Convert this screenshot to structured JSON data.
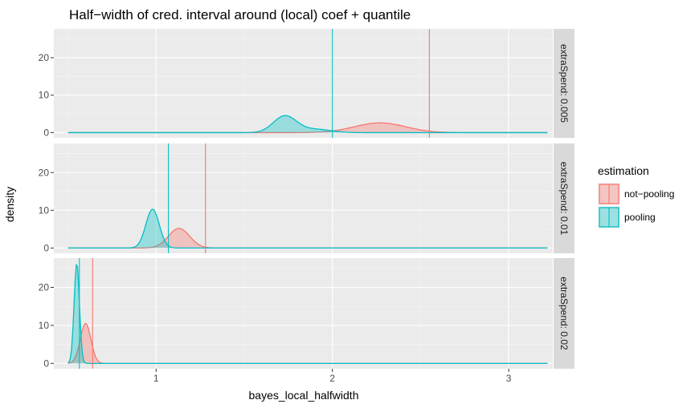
{
  "chart_data": {
    "type": "area",
    "title": "Half−width of cred. interval around (local) coef + quantile",
    "xlabel": "bayes_local_halfwidth",
    "ylabel": "density",
    "xlim": [
      0.42,
      3.25
    ],
    "ylim": [
      -1.4,
      27.7
    ],
    "x_ticks": [
      1,
      2,
      3
    ],
    "x_tick_labels": [
      "1",
      "2",
      "3"
    ],
    "y_ticks": [
      0,
      10,
      20
    ],
    "y_tick_labels": [
      "0",
      "10",
      "20"
    ],
    "grid": true,
    "legend": {
      "title": "estimation",
      "position": "right",
      "entries": [
        "not−pooling",
        "pooling"
      ]
    },
    "colors": {
      "not-pooling": "#F8766D",
      "pooling": "#00BFC4",
      "panel_bg": "#EBEBEB",
      "strip_bg": "#D9D9D9"
    },
    "x_range_data": [
      0.5,
      3.22
    ],
    "panels": [
      {
        "strip": "extraSpend: 0.005",
        "series": [
          {
            "name": "not−pooling",
            "peaks": [
              {
                "mean": 2.27,
                "sd": 0.145,
                "height": 2.6
              }
            ],
            "quantile": 2.55
          },
          {
            "name": "pooling",
            "peaks": [
              {
                "mean": 1.73,
                "sd": 0.065,
                "height": 4.4
              },
              {
                "mean": 1.9,
                "sd": 0.09,
                "height": 0.9
              }
            ],
            "quantile": 2.0
          }
        ]
      },
      {
        "strip": "extraSpend: 0.01",
        "series": [
          {
            "name": "not−pooling",
            "peaks": [
              {
                "mean": 1.13,
                "sd": 0.06,
                "height": 5.2
              }
            ],
            "quantile": 1.28
          },
          {
            "name": "pooling",
            "peaks": [
              {
                "mean": 0.98,
                "sd": 0.038,
                "height": 10.3
              }
            ],
            "quantile": 1.07
          }
        ]
      },
      {
        "strip": "extraSpend: 0.02",
        "series": [
          {
            "name": "not−pooling",
            "peaks": [
              {
                "mean": 0.6,
                "sd": 0.03,
                "height": 10.5
              }
            ],
            "quantile": 0.64
          },
          {
            "name": "pooling",
            "peaks": [
              {
                "mean": 0.55,
                "sd": 0.015,
                "height": 26.4
              }
            ],
            "quantile": 0.565
          }
        ]
      }
    ]
  }
}
